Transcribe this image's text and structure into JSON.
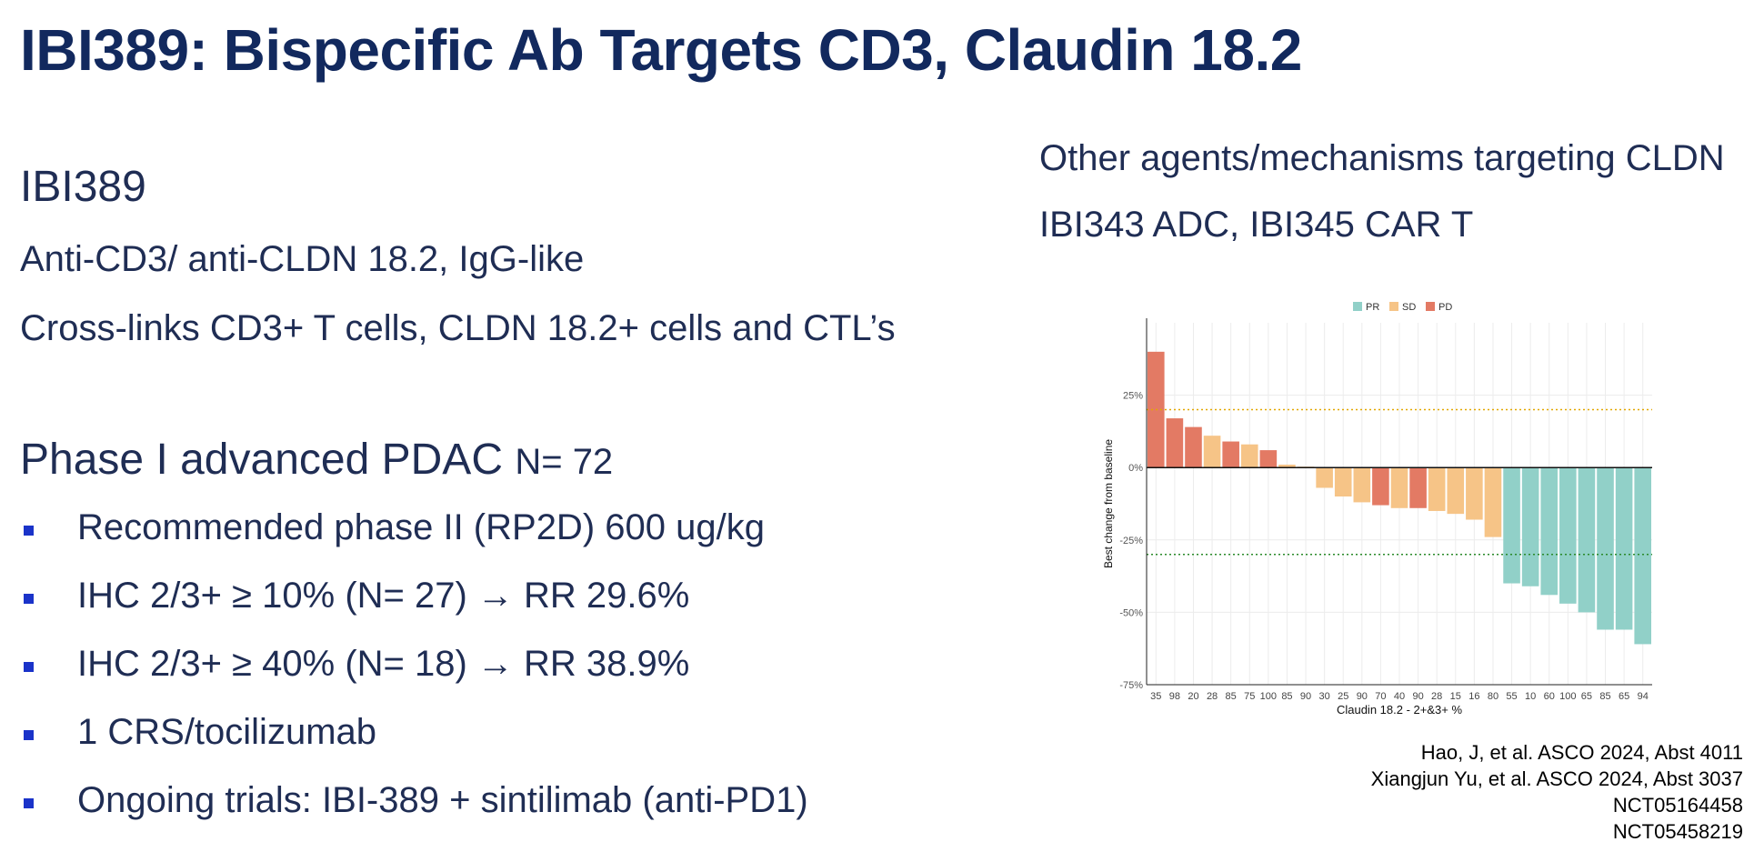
{
  "title": "IBI389: Bispecific Ab Targets CD3, Claudin 18.2",
  "left": {
    "drug_name": "IBI389",
    "line1": "Anti-CD3/ anti-CLDN 18.2, IgG-like",
    "line2": "Cross-links CD3+ T cells, CLDN 18.2+ cells and CTL’s",
    "phase_heading": "Phase I advanced PDAC",
    "phase_n": "N= 72",
    "bullets": [
      "Recommended phase II (RP2D) 600 ug/kg",
      "IHC 2/3+ ≥ 10% (N= 27) → RR 29.6%",
      "IHC 2/3+ ≥ 40% (N= 18) → RR 38.9%",
      "1 CRS/tocilizumab",
      "Ongoing trials: IBI-389 + sintilimab (anti-PD1)"
    ]
  },
  "right": {
    "other_heading": "Other agents/mechanisms targeting CLDN",
    "other_agents": "IBI343 ADC, IBI345 CAR T"
  },
  "references": [
    "Hao, J, et al. ASCO 2024, Abst 4011",
    "Xiangjun Yu, et al. ASCO 2024, Abst 3037",
    "NCT05164458",
    "NCT05458219"
  ],
  "colors": {
    "title": "#12295e",
    "text": "#1f2d54",
    "bullet": "#1a33c9",
    "PR": "#91d0c8",
    "SD": "#f6c487",
    "PD": "#e37a64",
    "line_pd": "#e3a700",
    "line_pr": "#2a8a2a"
  },
  "chart_data": {
    "type": "bar",
    "title": "",
    "xlabel": "Claudin 18.2 - 2+&3+ %",
    "ylabel": "Best change from baseline",
    "ylim": [
      -75,
      50
    ],
    "yticks": [
      25,
      0,
      -25,
      -50,
      -75
    ],
    "ytick_labels": [
      "25%",
      "0%",
      "-25%",
      "-50%",
      "-75%"
    ],
    "legend": [
      {
        "label": "PR",
        "color": "#91d0c8"
      },
      {
        "label": "SD",
        "color": "#f6c487"
      },
      {
        "label": "PD",
        "color": "#e37a64"
      }
    ],
    "legend_position": "top",
    "reference_lines": [
      {
        "value": 20,
        "color": "#e3a700",
        "style": "dotted"
      },
      {
        "value": -30,
        "color": "#2a8a2a",
        "style": "dotted"
      }
    ],
    "categories": [
      "35",
      "98",
      "20",
      "28",
      "85",
      "75",
      "100",
      "85",
      "90",
      "30",
      "25",
      "90",
      "70",
      "40",
      "90",
      "28",
      "15",
      "16",
      "80",
      "55",
      "10",
      "60",
      "100",
      "65",
      "85",
      "65",
      "94"
    ],
    "values": [
      40,
      17,
      14,
      11,
      9,
      8,
      6,
      1,
      0,
      -7,
      -10,
      -12,
      -13,
      -14,
      -14,
      -15,
      -16,
      -18,
      -24,
      -40,
      -41,
      -44,
      -47,
      -50,
      -56,
      -56,
      -61
    ],
    "response": [
      "PD",
      "PD",
      "PD",
      "SD",
      "PD",
      "SD",
      "PD",
      "SD",
      "SD",
      "SD",
      "SD",
      "SD",
      "PD",
      "SD",
      "PD",
      "SD",
      "SD",
      "SD",
      "SD",
      "PR",
      "PR",
      "PR",
      "PR",
      "PR",
      "PR",
      "PR",
      "PR"
    ]
  }
}
